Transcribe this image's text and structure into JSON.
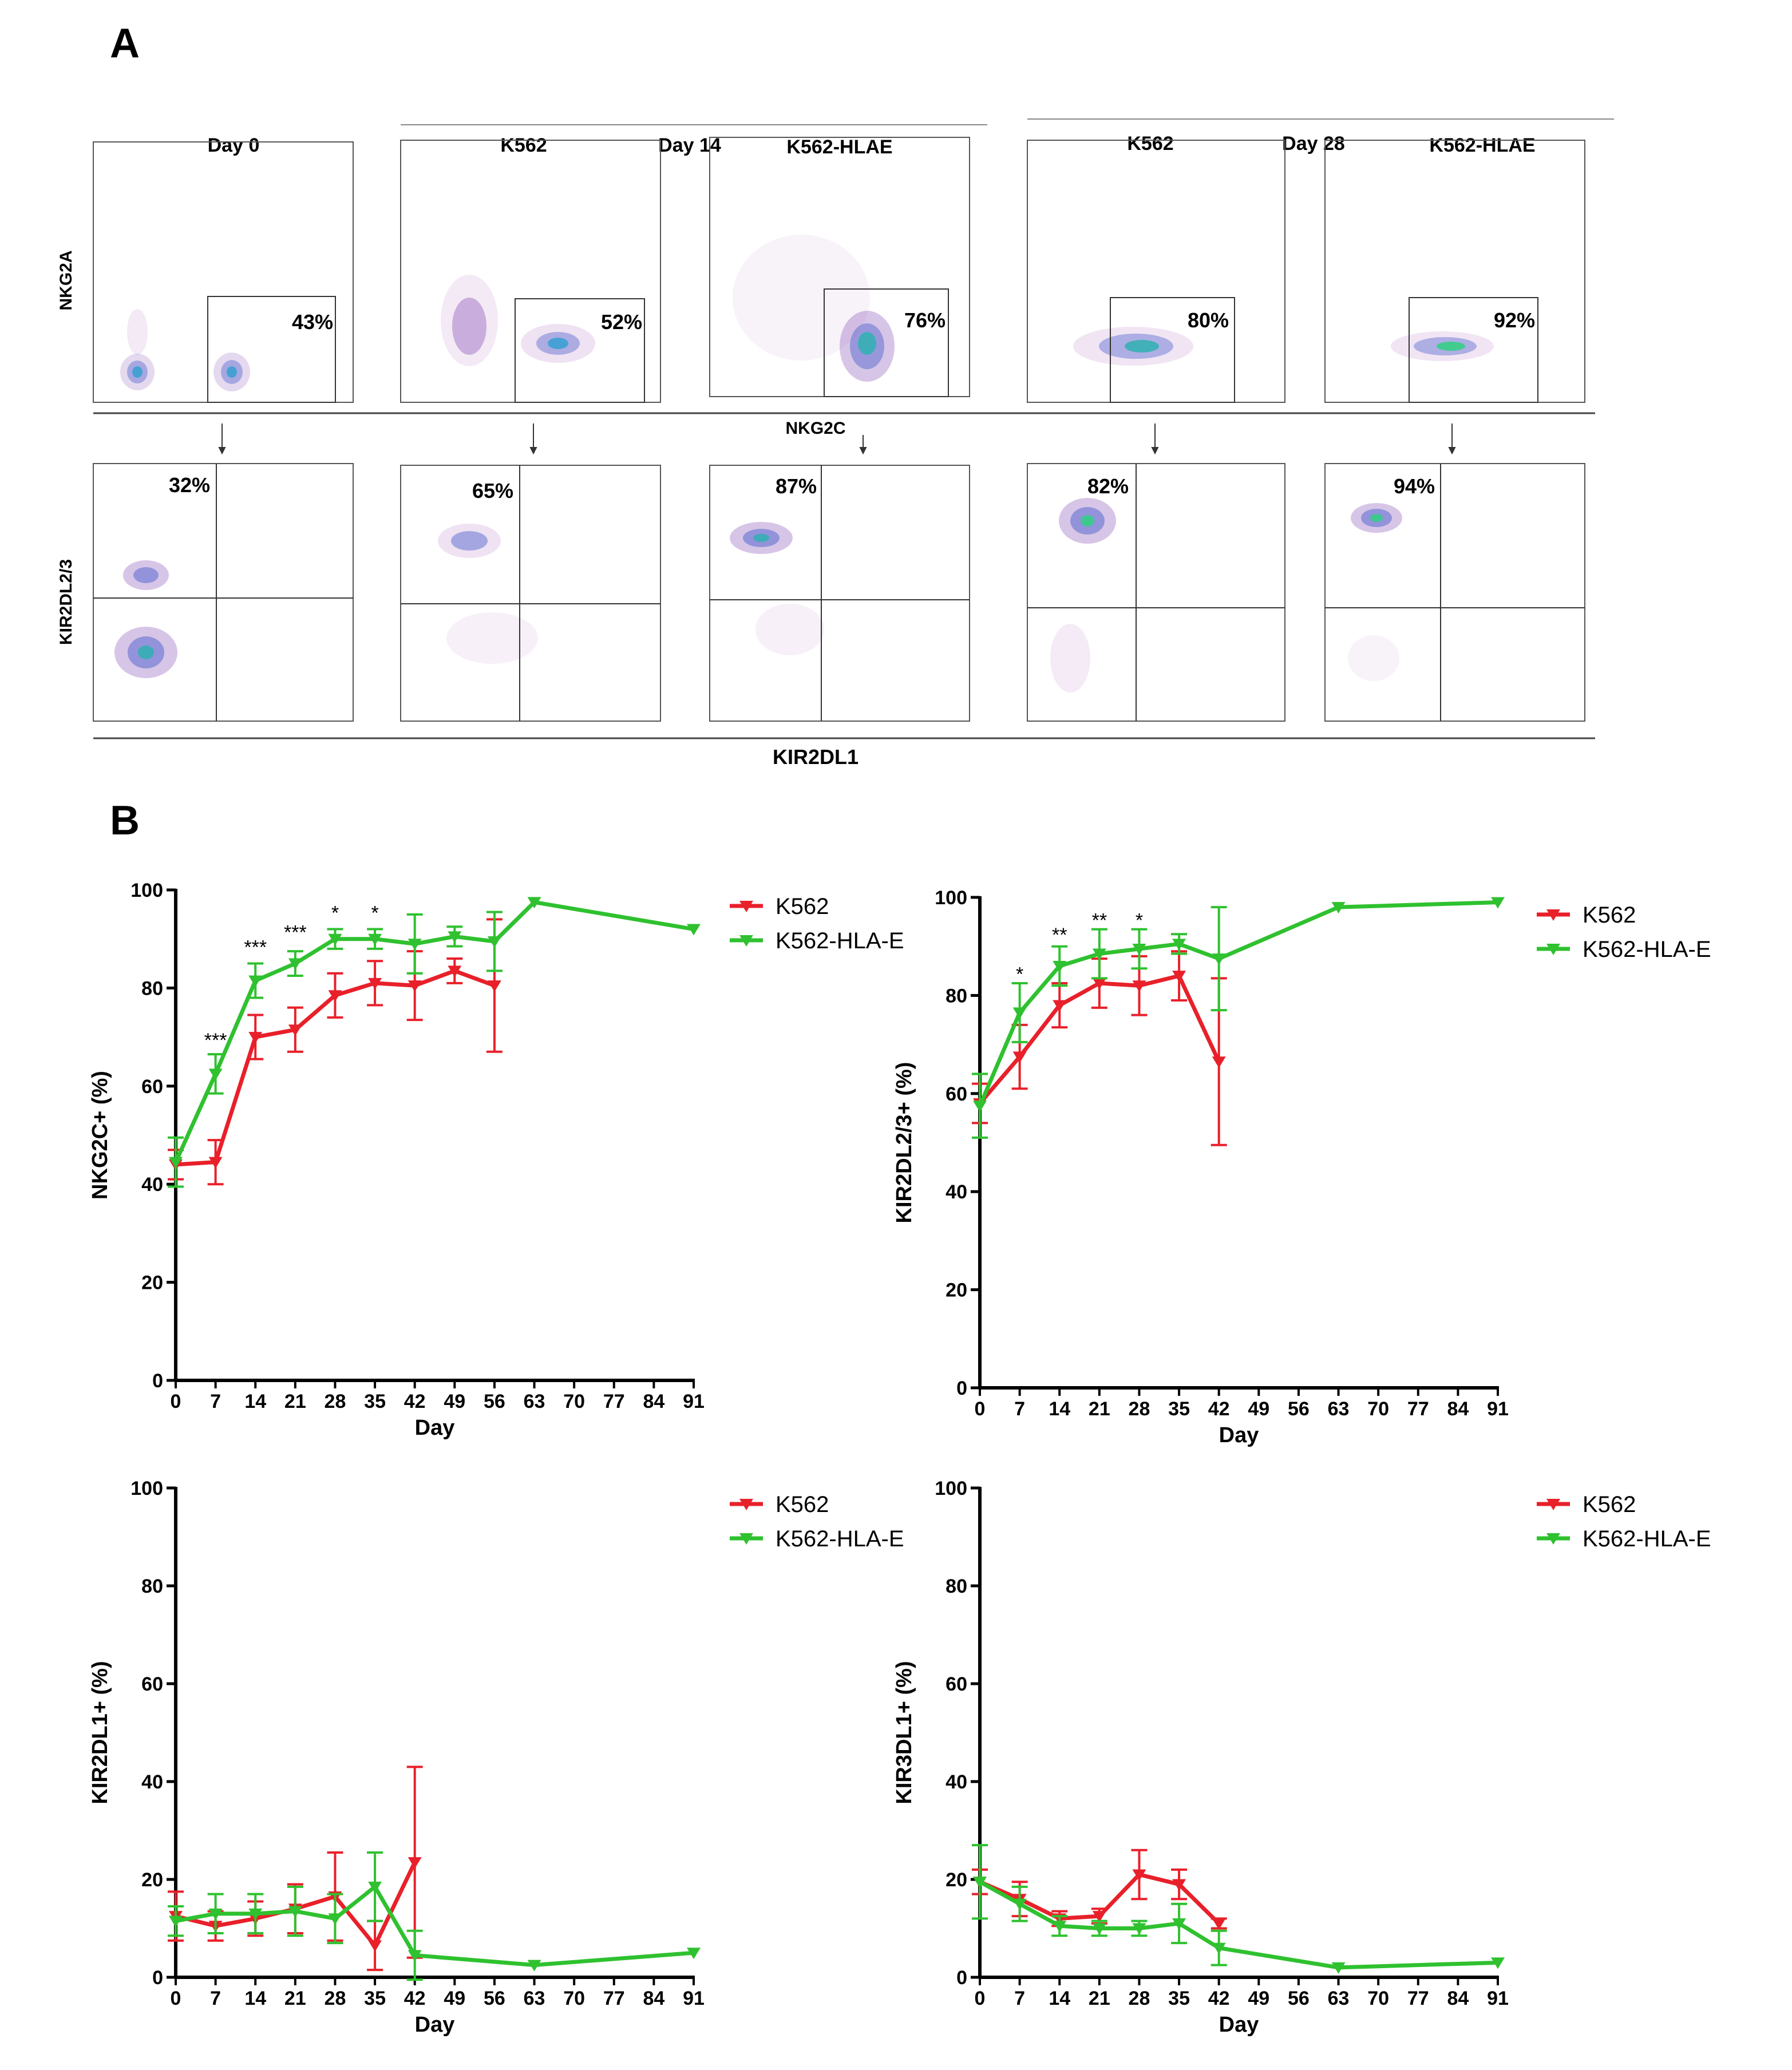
{
  "panel_a": {
    "letter": "A",
    "header_day0": "Day 0",
    "group14": {
      "day": "Day 14",
      "left": "K562",
      "right": "K562-HLAE"
    },
    "group28": {
      "day": "Day 28",
      "left": "K562",
      "right": "K562-HLAE"
    },
    "row1_ylabel": "NKG2A",
    "row1_xlabel": "NKG2C",
    "row2_ylabel": "KIR2DL2/3",
    "row2_xlabel": "KIR2DL1",
    "row1_percents": [
      "43%",
      "52%",
      "76%",
      "80%",
      "92%"
    ],
    "row2_percents": [
      "32%",
      "65%",
      "87%",
      "82%",
      "94%"
    ]
  },
  "panel_b": {
    "letter": "B"
  },
  "colors": {
    "k562": "#e8202a",
    "hlae": "#2fc12f",
    "axis": "#000000"
  },
  "chart_data": [
    {
      "type": "line",
      "ylabel": "NKG2C+ (%)",
      "xlabel": "Day",
      "ylim": [
        0,
        100
      ],
      "yticks": [
        0,
        20,
        40,
        60,
        80,
        100
      ],
      "xticks": [
        0,
        7,
        14,
        21,
        28,
        35,
        42,
        49,
        56,
        63,
        70,
        77,
        84,
        91
      ],
      "legend": [
        "K562",
        "K562-HLA-E"
      ],
      "series": [
        {
          "name": "K562",
          "x": [
            0,
            7,
            14,
            21,
            28,
            35,
            42,
            49,
            56
          ],
          "values": [
            44,
            44.5,
            70,
            71.5,
            78.5,
            81,
            80.5,
            83.5,
            80.5
          ],
          "err": [
            3,
            4.5,
            4.5,
            4.5,
            4.5,
            4.5,
            7,
            2.5,
            13.5
          ]
        },
        {
          "name": "K562-HLA-E",
          "x": [
            0,
            7,
            14,
            21,
            28,
            35,
            42,
            49,
            56,
            63,
            91
          ],
          "values": [
            44.5,
            62.5,
            81.5,
            85,
            90,
            90,
            89,
            90.5,
            89.5,
            97.5,
            92
          ],
          "err": [
            5,
            4,
            3.5,
            2.5,
            2,
            2,
            6,
            2,
            6,
            0,
            0
          ]
        }
      ],
      "annotations": [
        {
          "x": 7,
          "text": "***",
          "y": 68
        },
        {
          "x": 14,
          "text": "***",
          "y": 87
        },
        {
          "x": 21,
          "text": "***",
          "y": 90
        },
        {
          "x": 28,
          "text": "*",
          "y": 94
        },
        {
          "x": 35,
          "text": "*",
          "y": 94
        }
      ]
    },
    {
      "type": "line",
      "ylabel": "KIR2DL2/3+ (%)",
      "xlabel": "Day",
      "ylim": [
        0,
        100
      ],
      "yticks": [
        0,
        20,
        40,
        60,
        80,
        100
      ],
      "xticks": [
        0,
        7,
        14,
        21,
        28,
        35,
        42,
        49,
        56,
        63,
        70,
        77,
        84,
        91
      ],
      "legend": [
        "K562",
        "K562-HLA-E"
      ],
      "series": [
        {
          "name": "K562",
          "x": [
            0,
            7,
            14,
            21,
            28,
            35,
            42
          ],
          "values": [
            58,
            67.5,
            78,
            82.5,
            82,
            84,
            66.5
          ],
          "err": [
            4,
            6.5,
            4.5,
            5,
            6,
            5,
            17
          ]
        },
        {
          "name": "K562-HLA-E",
          "x": [
            0,
            7,
            14,
            21,
            28,
            35,
            42,
            63,
            91
          ],
          "values": [
            57.5,
            76.5,
            86,
            88.5,
            89.5,
            90.5,
            87.5,
            98,
            99
          ],
          "err": [
            6.5,
            6,
            4,
            5,
            4,
            2,
            10.5,
            0,
            0
          ]
        }
      ],
      "annotations": [
        {
          "x": 7,
          "text": "*",
          "y": 83
        },
        {
          "x": 14,
          "text": "**",
          "y": 91
        },
        {
          "x": 21,
          "text": "**",
          "y": 94
        },
        {
          "x": 28,
          "text": "*",
          "y": 94
        }
      ]
    },
    {
      "type": "line",
      "ylabel": "KIR2DL1+ (%)",
      "xlabel": "Day",
      "ylim": [
        0,
        100
      ],
      "yticks": [
        0,
        20,
        40,
        60,
        80,
        100
      ],
      "xticks": [
        0,
        7,
        14,
        21,
        28,
        35,
        42,
        49,
        56,
        63,
        70,
        77,
        84,
        91
      ],
      "legend": [
        "K562",
        "K562-HLA-E"
      ],
      "series": [
        {
          "name": "K562",
          "x": [
            0,
            7,
            14,
            21,
            28,
            35,
            42
          ],
          "values": [
            12.5,
            10.5,
            12,
            14,
            16.5,
            6.5,
            23.5
          ],
          "err": [
            5,
            3,
            3.5,
            5,
            9,
            5,
            19.5
          ]
        },
        {
          "name": "K562-HLA-E",
          "x": [
            0,
            7,
            14,
            21,
            28,
            35,
            42,
            63,
            91
          ],
          "values": [
            11.5,
            13,
            13,
            13.5,
            12,
            18.5,
            4.5,
            2.5,
            5
          ],
          "err": [
            3,
            4,
            4,
            5,
            5,
            7,
            5,
            0,
            0
          ]
        }
      ],
      "annotations": []
    },
    {
      "type": "line",
      "ylabel": "KIR3DL1+ (%)",
      "xlabel": "Day",
      "ylim": [
        0,
        100
      ],
      "yticks": [
        0,
        20,
        40,
        60,
        80,
        100
      ],
      "xticks": [
        0,
        7,
        14,
        21,
        28,
        35,
        42,
        49,
        56,
        63,
        70,
        77,
        84,
        91
      ],
      "legend": [
        "K562",
        "K562-HLA-E"
      ],
      "series": [
        {
          "name": "K562",
          "x": [
            0,
            7,
            14,
            21,
            28,
            35,
            42
          ],
          "values": [
            19.5,
            16,
            12,
            12.5,
            21,
            19,
            11
          ],
          "err": [
            2.5,
            3.5,
            1.5,
            1.5,
            5,
            3,
            1
          ]
        },
        {
          "name": "K562-HLA-E",
          "x": [
            0,
            7,
            14,
            21,
            28,
            35,
            42,
            63,
            91
          ],
          "values": [
            19.5,
            15,
            10.5,
            10,
            10,
            11,
            6,
            2,
            3
          ],
          "err": [
            7.5,
            3.5,
            2,
            1.5,
            1.5,
            4,
            3.5,
            0,
            0
          ]
        }
      ],
      "annotations": []
    }
  ]
}
